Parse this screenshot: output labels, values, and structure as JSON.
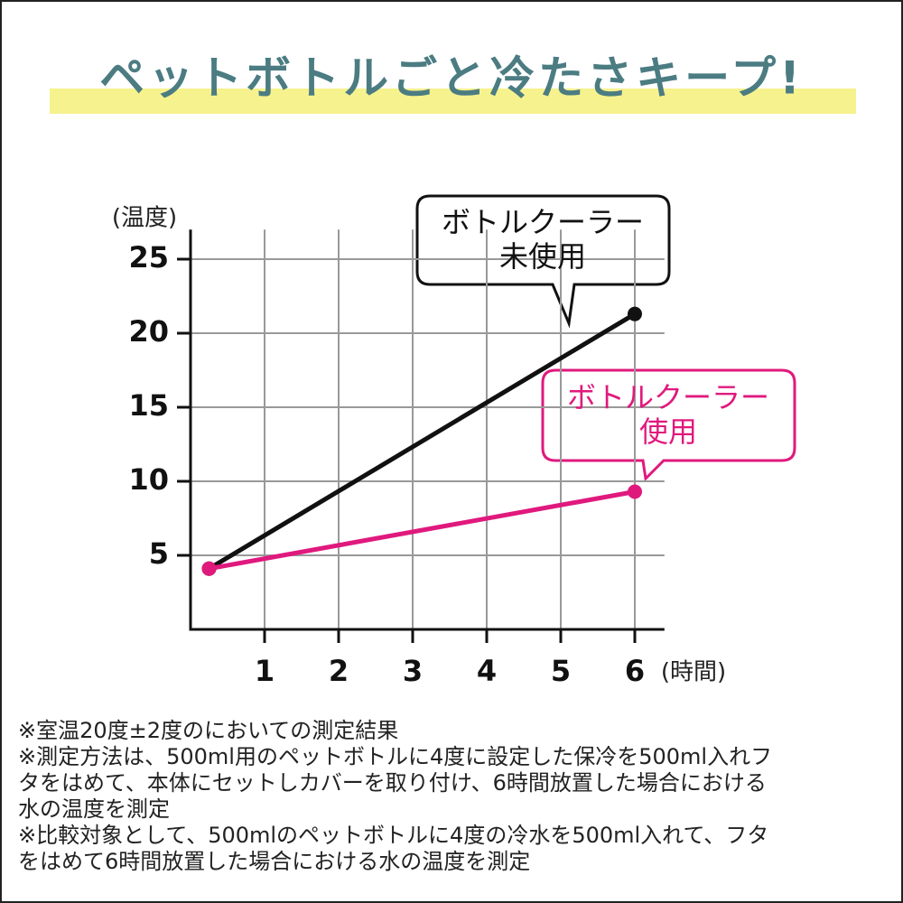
{
  "chart_data": {
    "type": "line",
    "title": "ペットボトルごと冷たさキープ!",
    "ylabel": "(温度)",
    "xlabel": "(時間)",
    "x": [
      0.25,
      6
    ],
    "series": [
      {
        "color": "#111111",
        "values": [
          4.1,
          21.3
        ]
      },
      {
        "color": "#e0197d",
        "values": [
          4.1,
          9.3
        ]
      }
    ],
    "annotations": [
      {
        "lines": [
          "ボトルクーラー",
          "未使用"
        ],
        "color": "#111111"
      },
      {
        "lines": [
          "ボトルクーラー",
          "使用"
        ],
        "color": "#e0197d"
      }
    ],
    "xlim": [
      0,
      6.4
    ],
    "ylim": [
      0,
      27
    ],
    "xticks": [
      1,
      2,
      3,
      4,
      5,
      6
    ],
    "yticks": [
      5,
      10,
      15,
      20,
      25
    ],
    "grid": true,
    "notes": [
      "※室温20度±2度のにおいての測定結果",
      "※測定方法は、500ml用のペットボトルに4度に設定した保冷を500ml入れフ",
      "タをはめて、本体にセットしカバーを取り付け、6時間放置した場合における",
      "水の温度を測定",
      "※比較対象として、500mlのペットボトルに4度の冷水を500ml入れて、フタ",
      "をはめて6時間放置した場合における水の温度を測定"
    ]
  }
}
